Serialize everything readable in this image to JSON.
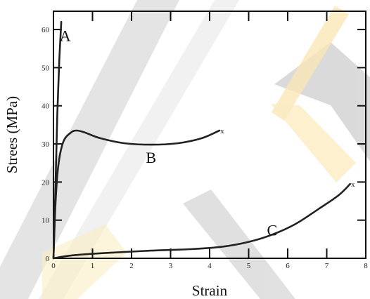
{
  "chart_data": {
    "type": "line",
    "xlabel": "Strain",
    "ylabel": "Strees (MPa)",
    "xlim": [
      0,
      8
    ],
    "ylim": [
      0,
      65
    ],
    "x_ticks": [
      0,
      1,
      2,
      3,
      4,
      5,
      6,
      7,
      8
    ],
    "y_ticks": [
      0,
      10,
      20,
      30,
      40,
      50,
      60
    ],
    "break_marker": "x",
    "grid": false,
    "series": [
      {
        "name": "A",
        "label_at": [
          0.3,
          57
        ],
        "points": [
          [
            0,
            0
          ],
          [
            0.05,
            18
          ],
          [
            0.1,
            38
          ],
          [
            0.15,
            52
          ],
          [
            0.2,
            62
          ]
        ],
        "break_point": false
      },
      {
        "name": "B",
        "label_at": [
          2.5,
          25
        ],
        "points": [
          [
            0,
            0
          ],
          [
            0.05,
            14
          ],
          [
            0.12,
            24
          ],
          [
            0.25,
            30.5
          ],
          [
            0.45,
            33
          ],
          [
            0.6,
            33.5
          ],
          [
            0.8,
            33
          ],
          [
            1.2,
            31.5
          ],
          [
            1.8,
            30.2
          ],
          [
            2.5,
            29.8
          ],
          [
            3.2,
            30.2
          ],
          [
            3.8,
            31.5
          ],
          [
            4.25,
            33.5
          ]
        ],
        "break_point": true
      },
      {
        "name": "C",
        "label_at": [
          5.6,
          6
        ],
        "points": [
          [
            0,
            0
          ],
          [
            0.5,
            0.8
          ],
          [
            1.5,
            1.5
          ],
          [
            2.5,
            2
          ],
          [
            3.5,
            2.4
          ],
          [
            4.3,
            3
          ],
          [
            5.0,
            4.3
          ],
          [
            5.6,
            6.2
          ],
          [
            6.2,
            9
          ],
          [
            6.8,
            13
          ],
          [
            7.3,
            16.5
          ],
          [
            7.6,
            19.5
          ]
        ],
        "break_point": true
      }
    ]
  },
  "colors": {
    "curve": "#222222",
    "watermark_gray": "#c4c4c4",
    "watermark_yellow": "#f5c542"
  }
}
